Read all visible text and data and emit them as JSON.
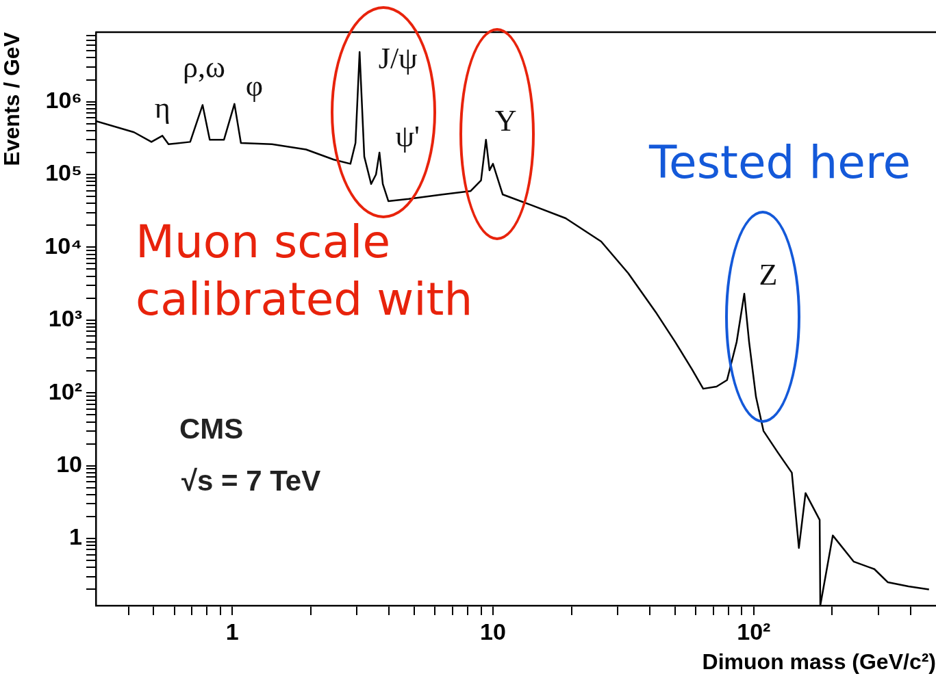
{
  "chart_data": {
    "type": "line",
    "xlabel": "Dimuon mass (GeV/c²)",
    "ylabel": "Events / GeV",
    "log": "xy",
    "grid": false,
    "legend": false,
    "marker": "none",
    "line_style": "solid",
    "xlim": [
      0.3,
      500
    ],
    "ylim": [
      0.12,
      9000000
    ],
    "xticks": [
      {
        "value": 0.4,
        "label": null
      },
      {
        "value": 0.5,
        "label": null
      },
      {
        "value": 0.6,
        "label": null
      },
      {
        "value": 0.7,
        "label": null
      },
      {
        "value": 0.8,
        "label": null
      },
      {
        "value": 0.9,
        "label": null
      },
      1,
      {
        "value": 2,
        "label": null
      },
      {
        "value": 3,
        "label": null
      },
      {
        "value": 4,
        "label": null
      },
      {
        "value": 5,
        "label": null
      },
      {
        "value": 6,
        "label": null
      },
      {
        "value": 7,
        "label": null
      },
      {
        "value": 8,
        "label": null
      },
      {
        "value": 9,
        "label": null
      },
      10,
      {
        "value": 20,
        "label": null
      },
      {
        "value": 30,
        "label": null
      },
      {
        "value": 40,
        "label": null
      },
      {
        "value": 50,
        "label": null
      },
      {
        "value": 60,
        "label": null
      },
      {
        "value": 70,
        "label": null
      },
      {
        "value": 80,
        "label": null
      },
      {
        "value": 90,
        "label": null
      },
      {
        "value": 100,
        "label": "10²"
      },
      {
        "value": 200,
        "label": null
      },
      {
        "value": 300,
        "label": null
      },
      {
        "value": 400,
        "label": null
      }
    ],
    "yticks": [
      {
        "value": 0.2,
        "label": null
      },
      {
        "value": 0.3,
        "label": null
      },
      {
        "value": 0.4,
        "label": null
      },
      {
        "value": 0.5,
        "label": null
      },
      {
        "value": 0.6,
        "label": null
      },
      {
        "value": 0.7,
        "label": null
      },
      {
        "value": 0.8,
        "label": null
      },
      {
        "value": 0.9,
        "label": null
      },
      1,
      {
        "value": 2,
        "label": null
      },
      {
        "value": 3,
        "label": null
      },
      {
        "value": 4,
        "label": null
      },
      {
        "value": 5,
        "label": null
      },
      {
        "value": 6,
        "label": null
      },
      {
        "value": 7,
        "label": null
      },
      {
        "value": 8,
        "label": null
      },
      {
        "value": 9,
        "label": null
      },
      10,
      {
        "value": 20,
        "label": null
      },
      {
        "value": 30,
        "label": null
      },
      {
        "value": 40,
        "label": null
      },
      {
        "value": 50,
        "label": null
      },
      {
        "value": 60,
        "label": null
      },
      {
        "value": 70,
        "label": null
      },
      {
        "value": 80,
        "label": null
      },
      {
        "value": 90,
        "label": null
      },
      {
        "value": 100,
        "label": "10²"
      },
      {
        "value": 200,
        "label": null
      },
      {
        "value": 300,
        "label": null
      },
      {
        "value": 400,
        "label": null
      },
      {
        "value": 500,
        "label": null
      },
      {
        "value": 600,
        "label": null
      },
      {
        "value": 700,
        "label": null
      },
      {
        "value": 800,
        "label": null
      },
      {
        "value": 900,
        "label": null
      },
      {
        "value": 1000,
        "label": "10³"
      },
      {
        "value": 2000,
        "label": null
      },
      {
        "value": 3000,
        "label": null
      },
      {
        "value": 4000,
        "label": null
      },
      {
        "value": 5000,
        "label": null
      },
      {
        "value": 6000,
        "label": null
      },
      {
        "value": 7000,
        "label": null
      },
      {
        "value": 8000,
        "label": null
      },
      {
        "value": 9000,
        "label": null
      },
      {
        "value": 10000,
        "label": "10⁴"
      },
      {
        "value": 20000,
        "label": null
      },
      {
        "value": 30000,
        "label": null
      },
      {
        "value": 40000,
        "label": null
      },
      {
        "value": 50000,
        "label": null
      },
      {
        "value": 60000,
        "label": null
      },
      {
        "value": 70000,
        "label": null
      },
      {
        "value": 80000,
        "label": null
      },
      {
        "value": 90000,
        "label": null
      },
      {
        "value": 100000,
        "label": "10⁵"
      },
      {
        "value": 200000,
        "label": null
      },
      {
        "value": 300000,
        "label": null
      },
      {
        "value": 400000,
        "label": null
      },
      {
        "value": 500000,
        "label": null
      },
      {
        "value": 600000,
        "label": null
      },
      {
        "value": 700000,
        "label": null
      },
      {
        "value": 800000,
        "label": null
      },
      {
        "value": 900000,
        "label": null
      },
      {
        "value": 1000000,
        "label": "10⁶"
      },
      {
        "value": 2000000,
        "label": null
      },
      {
        "value": 3000000,
        "label": null
      },
      {
        "value": 4000000,
        "label": null
      },
      {
        "value": 5000000,
        "label": null
      },
      {
        "value": 6000000,
        "label": null
      },
      {
        "value": 7000000,
        "label": null
      },
      {
        "value": 8000000,
        "label": null
      }
    ],
    "series": [
      {
        "color": "#000000",
        "x": [
          0.3,
          0.42,
          0.49,
          0.54,
          0.57,
          0.69,
          0.77,
          0.82,
          0.93,
          1.02,
          1.08,
          1.42,
          1.92,
          2.45,
          2.84,
          2.97,
          3.08,
          3.21,
          3.41,
          3.56,
          3.67,
          3.78,
          3.97,
          4.75,
          6.4,
          8.2,
          9.0,
          9.4,
          9.7,
          10,
          10.3,
          10.9,
          14,
          19,
          26,
          33,
          42,
          50,
          58,
          64,
          72,
          79,
          86,
          92,
          96,
          102,
          109,
          124,
          140,
          149,
          158,
          179,
          180,
          201,
          242,
          290,
          327,
          392,
          470
        ],
        "values": [
          540000,
          380000,
          280000,
          340000,
          260000,
          280000,
          900000,
          300000,
          300000,
          930000,
          270000,
          260000,
          220000,
          160000,
          140000,
          270000,
          4800000,
          176000,
          74000,
          100000,
          200000,
          74000,
          43000,
          46000,
          53000,
          59000,
          83000,
          300000,
          114000,
          140000,
          100000,
          53000,
          38000,
          25000,
          12000,
          4400,
          1300,
          500,
          210,
          114,
          122,
          150,
          500,
          2300,
          500,
          88,
          30,
          15,
          8,
          0.74,
          4.2,
          1.8,
          0.12,
          1.1,
          0.48,
          0.38,
          0.25,
          0.22,
          0.2
        ]
      }
    ],
    "annotations": [
      {
        "text": "η",
        "x": 0.54,
        "y": 340000
      },
      {
        "text": "ρ,ω",
        "x": 0.77,
        "y": 900000
      },
      {
        "text": "φ",
        "x": 1.02,
        "y": 930000
      },
      {
        "text": "J/ψ",
        "x": 3.08,
        "y": 4800000
      },
      {
        "text": "ψ'",
        "x": 3.67,
        "y": 200000
      },
      {
        "text": "Υ",
        "x": 9.4,
        "y": 300000
      },
      {
        "text": "Z",
        "x": 92,
        "y": 2300
      },
      "CMS",
      "√s = 7 TeV",
      "Muon scale calibrated with",
      "Tested here"
    ]
  }
}
